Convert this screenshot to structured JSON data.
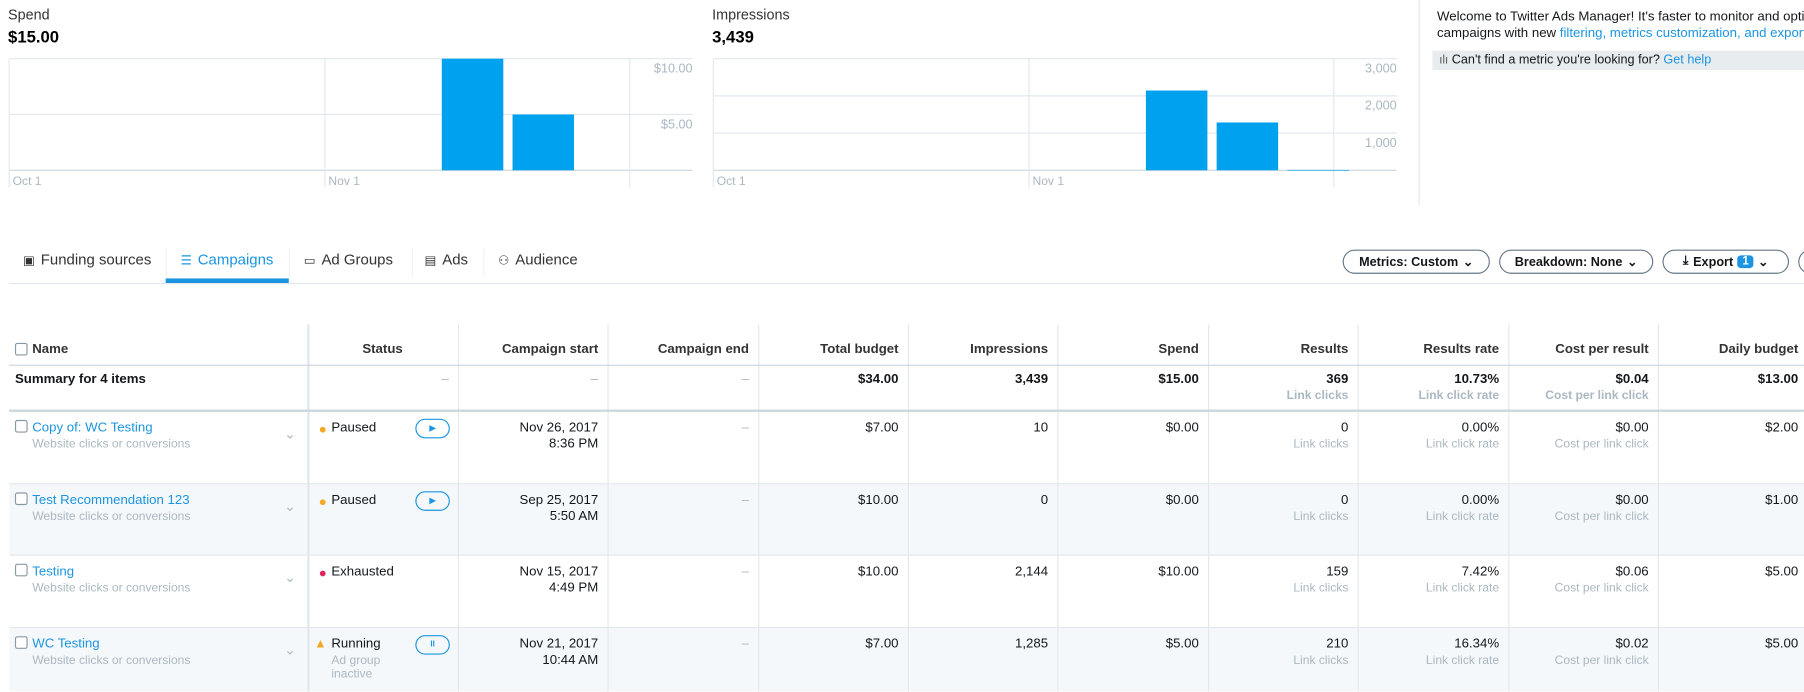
{
  "chart_data": [
    {
      "type": "bar",
      "title": "Spend",
      "subtitle": "$15.00",
      "categories": [
        null,
        null
      ],
      "values": [
        10,
        5
      ],
      "color": "#00a2f0",
      "ylim": [
        0,
        10
      ],
      "yticks": [
        {
          "value": 5,
          "label": "$5.00"
        },
        {
          "value": 10,
          "label": "$10.00"
        }
      ],
      "x_labels": [
        "Oct 1",
        "Nov 1"
      ]
    },
    {
      "type": "bar",
      "title": "Impressions",
      "subtitle": "3,439",
      "categories": [
        null,
        null,
        null
      ],
      "values": [
        2144,
        1285,
        10
      ],
      "color": "#00a2f0",
      "ylim": [
        0,
        3000
      ],
      "yticks": [
        {
          "value": 1000,
          "label": "1,000"
        },
        {
          "value": 2000,
          "label": "2,000"
        },
        {
          "value": 3000,
          "label": "3,000"
        }
      ],
      "x_labels": [
        "Oct 1",
        "Nov 1"
      ]
    }
  ],
  "info_panel": {
    "line1": "Welcome to Twitter Ads Manager! It's faster to monitor and optim",
    "line2": "campaigns with new",
    "line2_link": "filtering, metrics customization, and export",
    "hint": "Can't find a metric you're looking for?",
    "hint_link": "Get help"
  },
  "tabs": [
    "Funding sources",
    "Campaigns",
    "Ad Groups",
    "Ads",
    "Audience"
  ],
  "toolbar": {
    "metrics": "Metrics: Custom",
    "breakdown": "Breakdown: None",
    "export": "Export",
    "export_count": "1"
  },
  "table": {
    "columns": [
      "Name",
      "Status",
      "Campaign start",
      "Campaign end",
      "Total budget",
      "Impressions",
      "Spend",
      "Results",
      "Results rate",
      "Cost per result",
      "Daily budget"
    ],
    "summary": {
      "name": "Summary for 4 items",
      "status": "–",
      "start": "–",
      "end": "–",
      "budget": "$34.00",
      "impressions": "3,439",
      "spend": "$15.00",
      "results": "369",
      "results_label": "Link clicks",
      "rate": "10.73%",
      "rate_label": "Link click rate",
      "cpr": "$0.04",
      "cpr_label": "Cost per link click",
      "daily": "$13.00"
    },
    "rows": [
      {
        "name": "Copy of: WC Testing",
        "objective": "Website clicks or conversions",
        "status": "Paused",
        "status_color": "#f5a623",
        "start_date": "Nov 26, 2017",
        "start_time": "8:36 PM",
        "end": "–",
        "budget": "$7.00",
        "impressions": "10",
        "spend": "$0.00",
        "results": "0",
        "results_label": "Link clicks",
        "rate": "0.00%",
        "rate_label": "Link click rate",
        "cpr": "$0.00",
        "cpr_label": "Cost per link click",
        "daily": "$2.00"
      },
      {
        "name": "Test Recommendation 123",
        "objective": "Website clicks or conversions",
        "status": "Paused",
        "status_color": "#f5a623",
        "start_date": "Sep 25, 2017",
        "start_time": "5:50 AM",
        "end": "–",
        "budget": "$10.00",
        "impressions": "0",
        "spend": "$0.00",
        "results": "0",
        "results_label": "Link clicks",
        "rate": "0.00%",
        "rate_label": "Link click rate",
        "cpr": "$0.00",
        "cpr_label": "Cost per link click",
        "daily": "$1.00"
      },
      {
        "name": "Testing",
        "objective": "Website clicks or conversions",
        "status": "Exhausted",
        "status_color": "#e0245e",
        "start_date": "Nov 15, 2017",
        "start_time": "4:49 PM",
        "end": "–",
        "budget": "$10.00",
        "impressions": "2,144",
        "spend": "$10.00",
        "results": "159",
        "results_label": "Link clicks",
        "rate": "7.42%",
        "rate_label": "Link click rate",
        "cpr": "$0.06",
        "cpr_label": "Cost per link click",
        "daily": "$5.00"
      },
      {
        "name": "WC Testing",
        "objective": "Website clicks or conversions",
        "status": "Running",
        "status_note": "Ad group inactive",
        "status_color": "#f5a623",
        "start_date": "Nov 21, 2017",
        "start_time": "10:44 AM",
        "end": "–",
        "budget": "$7.00",
        "impressions": "1,285",
        "spend": "$5.00",
        "results": "210",
        "results_label": "Link clicks",
        "rate": "16.34%",
        "rate_label": "Link click rate",
        "cpr": "$0.02",
        "cpr_label": "Cost per link click",
        "daily": "$5.00"
      }
    ]
  }
}
